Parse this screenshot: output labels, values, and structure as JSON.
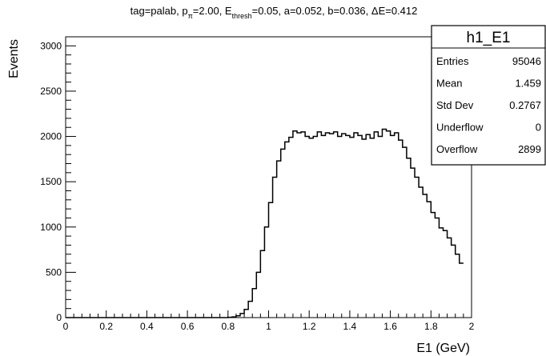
{
  "chart_data": {
    "type": "histogram",
    "title": "tag=palab, p_π=2.00, E_thresh=0.05, a=0.052, b=0.036, ΔE=0.412",
    "title_parts": {
      "t1": "tag=palab, p",
      "s1": "π",
      "t2": "=2.00, E",
      "s2": "thresh",
      "t3": "=0.05, a=0.052, b=0.036, ΔE=0.412"
    },
    "xlabel": "E1 (GeV)",
    "ylabel": "Events",
    "xlim": [
      0,
      2
    ],
    "ylim": [
      0,
      3100
    ],
    "x_ticks": [
      "0",
      "0.2",
      "0.4",
      "0.6",
      "0.8",
      "1",
      "1.2",
      "1.4",
      "1.6",
      "1.8",
      "2"
    ],
    "y_ticks": [
      "0",
      "500",
      "1000",
      "1500",
      "2000",
      "2500",
      "3000"
    ],
    "bin_width": 0.02,
    "x_start": 0.8,
    "values": [
      3,
      8,
      20,
      45,
      90,
      180,
      320,
      500,
      740,
      1000,
      1270,
      1550,
      1730,
      1860,
      1940,
      1990,
      2060,
      2040,
      2050,
      2000,
      1980,
      2000,
      2050,
      2010,
      2040,
      2030,
      2050,
      2000,
      2030,
      2010,
      1990,
      2040,
      2010,
      1970,
      2020,
      1980,
      2050,
      2000,
      2080,
      2060,
      2010,
      2040,
      1960,
      1880,
      1760,
      1650,
      1550,
      1440,
      1360,
      1280,
      1160,
      1100,
      990,
      960,
      880,
      800,
      700,
      600
    ],
    "stats": {
      "name": "h1_E1",
      "rows": [
        {
          "label": "Entries",
          "value": "95046"
        },
        {
          "label": "Mean",
          "value": "1.459"
        },
        {
          "label": "Std Dev",
          "value": "0.2767"
        },
        {
          "label": "Underflow",
          "value": "0"
        },
        {
          "label": "Overflow",
          "value": "2899"
        }
      ]
    }
  }
}
